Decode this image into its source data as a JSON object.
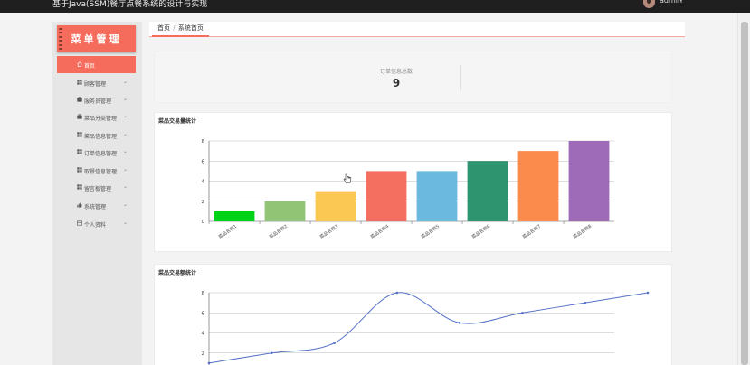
{
  "header": {
    "app_title": "基于Java(SSM)餐厅点餐系统的设计与实现",
    "username": "admin"
  },
  "sidebar": {
    "logo_text": "菜单管理",
    "items": [
      {
        "label": "首页",
        "icon": "home-icon",
        "active": true
      },
      {
        "label": "顾客管理",
        "icon": "grid-icon"
      },
      {
        "label": "服务员管理",
        "icon": "briefcase-icon"
      },
      {
        "label": "菜品分类管理",
        "icon": "briefcase-icon"
      },
      {
        "label": "菜品信息管理",
        "icon": "grid-icon"
      },
      {
        "label": "订单信息管理",
        "icon": "grid-icon"
      },
      {
        "label": "取餐信息管理",
        "icon": "grid-icon"
      },
      {
        "label": "留言板管理",
        "icon": "grid-icon"
      },
      {
        "label": "系统管理",
        "icon": "gear-icon"
      },
      {
        "label": "个人资料",
        "icon": "card-icon"
      }
    ]
  },
  "breadcrumb": {
    "home": "首页",
    "separator": "/",
    "current": "系统首页"
  },
  "stats": {
    "label": "订单信息总数",
    "value": "9"
  },
  "colors": {
    "accent": "#f56c5c",
    "topbar": "#1f1f1f",
    "line": "#5470c6"
  },
  "chart_data": [
    {
      "type": "bar",
      "title": "菜品交易量统计",
      "categories": [
        "菜品名称1",
        "菜品名称2",
        "菜品名称3",
        "菜品名称4",
        "菜品名称5",
        "菜品名称6",
        "菜品名称7",
        "菜品名称8"
      ],
      "values": [
        1,
        2,
        3,
        5,
        5,
        6,
        7,
        8
      ],
      "bar_colors": [
        "#00d218",
        "#91c474",
        "#fbc853",
        "#f56f61",
        "#6cb9e0",
        "#2e9470",
        "#fb8b4d",
        "#9d6bb8"
      ],
      "ylim": [
        0,
        8
      ],
      "yticks": [
        0,
        2,
        4,
        6,
        8
      ],
      "grid": true
    },
    {
      "type": "line",
      "title": "菜品交易额统计",
      "categories": [
        "菜品名称1",
        "菜品名称2",
        "菜品名称3",
        "菜品名称4",
        "菜品名称5",
        "菜品名称6",
        "菜品名称7",
        "菜品名称8"
      ],
      "values": [
        1,
        2,
        3,
        8,
        5,
        6,
        7,
        8
      ],
      "ylim": [
        0,
        8
      ],
      "yticks": [
        2,
        4,
        6,
        8
      ],
      "grid": true,
      "smooth": true
    }
  ]
}
